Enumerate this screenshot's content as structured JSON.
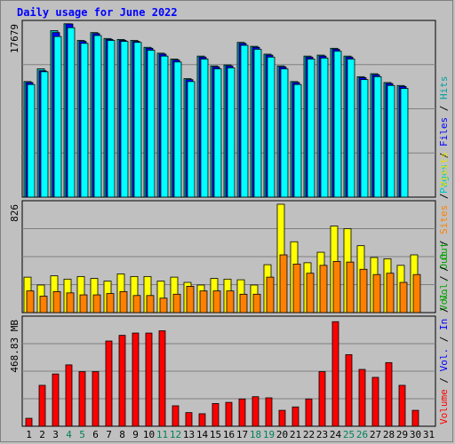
{
  "chart_data": [
    {
      "type": "bar",
      "title": "Daily usage for June 2022",
      "panel": "top",
      "ymax_label": "17679",
      "ylim": [
        0,
        17679
      ],
      "x": [
        "1",
        "2",
        "3",
        "4",
        "5",
        "6",
        "7",
        "8",
        "9",
        "10",
        "11",
        "12",
        "13",
        "14",
        "15",
        "16",
        "17",
        "18",
        "19",
        "20",
        "21",
        "22",
        "23",
        "24",
        "25",
        "26",
        "27",
        "28",
        "29",
        "30",
        "31"
      ],
      "weekend_days": [
        "4",
        "5",
        "11",
        "12",
        "18",
        "19",
        "25",
        "26"
      ],
      "series": [
        {
          "name": "Hits",
          "color": "#00bfbf",
          "values": [
            11800,
            13100,
            17000,
            17700,
            16000,
            16800,
            16200,
            16100,
            16000,
            15300,
            14700,
            14100,
            12100,
            14400,
            13400,
            13500,
            15800,
            15400,
            14600,
            13400,
            11800,
            14400,
            14500,
            15200,
            14400,
            12300,
            12600,
            11700,
            11400,
            0,
            0
          ]
        },
        {
          "name": "Files",
          "color": "#0000ff",
          "values": [
            11700,
            12900,
            16800,
            17679,
            15900,
            16700,
            16100,
            16000,
            15900,
            15200,
            14600,
            14000,
            12000,
            14300,
            13300,
            13400,
            15700,
            15300,
            14500,
            13300,
            11700,
            14300,
            14400,
            15100,
            14300,
            12200,
            12500,
            11600,
            11300,
            0,
            0
          ]
        },
        {
          "name": "Pages",
          "color": "#00ffff",
          "values": [
            11500,
            12800,
            16400,
            17300,
            15700,
            16500,
            16000,
            15900,
            15800,
            15000,
            14400,
            13800,
            11800,
            14100,
            13100,
            13200,
            15500,
            15100,
            14300,
            13100,
            11500,
            14100,
            14200,
            14900,
            14100,
            12000,
            12300,
            11400,
            11100,
            0,
            0
          ]
        }
      ],
      "legend": [
        "Hits",
        "Files",
        "Pages"
      ]
    },
    {
      "type": "bar",
      "panel": "middle",
      "ymax_label": "826",
      "ylim": [
        0,
        826
      ],
      "series": [
        {
          "name": "Visits",
          "color": "#ffff00",
          "values": [
            270,
            210,
            280,
            255,
            275,
            260,
            240,
            295,
            275,
            275,
            240,
            270,
            230,
            210,
            260,
            255,
            250,
            210,
            365,
            826,
            540,
            380,
            460,
            660,
            640,
            510,
            420,
            410,
            360,
            440,
            0
          ]
        },
        {
          "name": "Sites",
          "color": "#ff8000",
          "values": [
            165,
            125,
            160,
            150,
            135,
            135,
            145,
            160,
            130,
            130,
            110,
            140,
            200,
            165,
            165,
            165,
            140,
            140,
            270,
            440,
            370,
            300,
            360,
            390,
            385,
            330,
            290,
            300,
            230,
            290,
            0
          ]
        }
      ],
      "legend": [
        "Visits",
        "Sites",
        "Out",
        "Vol."
      ]
    },
    {
      "type": "bar",
      "panel": "bottom",
      "ymax_label": "468.83 MB",
      "ylim": [
        0,
        468.83
      ],
      "series": [
        {
          "name": "Volume",
          "color": "#ff0000",
          "values": [
            35,
            180,
            230,
            270,
            240,
            240,
            375,
            400,
            410,
            410,
            420,
            90,
            60,
            55,
            100,
            105,
            120,
            130,
            125,
            70,
            85,
            120,
            240,
            460,
            315,
            250,
            215,
            280,
            180,
            70,
            0
          ]
        }
      ],
      "legend": [
        "Volume",
        "Vol.",
        "In",
        "Vol.",
        "Out"
      ]
    }
  ]
}
